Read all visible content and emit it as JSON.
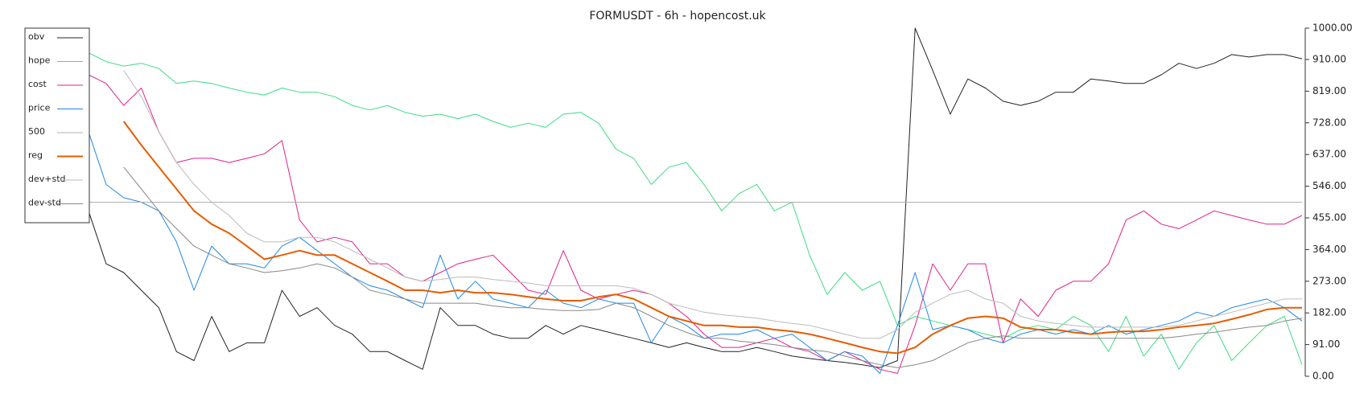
{
  "chart_data": {
    "type": "line",
    "title": "FORMUSDT - 6h - hopencost.uk",
    "ylim": [
      0,
      1000
    ],
    "yticks": [
      {
        "value": 0,
        "label": "0.00"
      },
      {
        "value": 91,
        "label": "91.00"
      },
      {
        "value": 182,
        "label": "182.00"
      },
      {
        "value": 273,
        "label": "273.00"
      },
      {
        "value": 364,
        "label": "364.00"
      },
      {
        "value": 455,
        "label": "455.00"
      },
      {
        "value": 546,
        "label": "546.00"
      },
      {
        "value": 637,
        "label": "637.00"
      },
      {
        "value": 728,
        "label": "728.00"
      },
      {
        "value": 819,
        "label": "819.00"
      },
      {
        "value": 910,
        "label": "910.00"
      },
      {
        "value": 1000,
        "label": "1000.00"
      }
    ],
    "legend": "upper left",
    "series": [
      {
        "name": "obv",
        "color": "#222222",
        "width": 1,
        "values": [
          475,
          323,
          298,
          247,
          197,
          71,
          45,
          172,
          71,
          96,
          96,
          247,
          172,
          197,
          146,
          121,
          71,
          71,
          45,
          20,
          197,
          146,
          146,
          121,
          109,
          109,
          146,
          121,
          146,
          134,
          121,
          109,
          96,
          83,
          96,
          83,
          71,
          71,
          83,
          71,
          58,
          51,
          45,
          40,
          33,
          25,
          45,
          1000,
          879,
          753,
          854,
          828,
          790,
          778,
          790,
          816,
          816,
          854,
          848,
          841,
          841,
          866,
          899,
          884,
          899,
          924,
          917,
          924,
          924,
          912
        ]
      },
      {
        "name": "hope",
        "color": "#3ddc84",
        "width": 1,
        "values": [
          929,
          904,
          891,
          899,
          884,
          841,
          848,
          841,
          828,
          816,
          808,
          828,
          816,
          816,
          803,
          778,
          765,
          778,
          758,
          747,
          753,
          740,
          753,
          732,
          715,
          727,
          715,
          753,
          758,
          727,
          652,
          626,
          551,
          601,
          614,
          551,
          475,
          525,
          551,
          475,
          500,
          348,
          235,
          298,
          247,
          273,
          146,
          172,
          159,
          146,
          134,
          121,
          109,
          134,
          146,
          134,
          172,
          146,
          71,
          172,
          58,
          121,
          20,
          96,
          146,
          45,
          96,
          146,
          172,
          33
        ]
      },
      {
        "name": "cost",
        "color": "#e0218a",
        "width": 1,
        "values": [
          866,
          841,
          778,
          828,
          702,
          614,
          626,
          626,
          614,
          626,
          639,
          677,
          449,
          386,
          399,
          386,
          323,
          323,
          285,
          273,
          298,
          323,
          336,
          348,
          298,
          247,
          235,
          361,
          247,
          222,
          235,
          247,
          235,
          210,
          172,
          121,
          83,
          83,
          96,
          109,
          83,
          71,
          45,
          71,
          45,
          20,
          8,
          146,
          323,
          247,
          323,
          323,
          96,
          222,
          172,
          247,
          273,
          273,
          323,
          449,
          475,
          437,
          424,
          449,
          475,
          462,
          449,
          437,
          437,
          462
        ]
      },
      {
        "name": "price",
        "color": "#1e88e5",
        "width": 1,
        "values": [
          702,
          551,
          513,
          500,
          475,
          386,
          247,
          374,
          323,
          323,
          311,
          374,
          399,
          361,
          323,
          285,
          260,
          247,
          222,
          197,
          348,
          222,
          273,
          222,
          210,
          197,
          247,
          210,
          197,
          222,
          210,
          210,
          96,
          172,
          146,
          109,
          121,
          121,
          134,
          109,
          121,
          83,
          45,
          71,
          58,
          8,
          146,
          298,
          134,
          146,
          134,
          109,
          96,
          121,
          134,
          121,
          134,
          121,
          146,
          121,
          134,
          146,
          159,
          184,
          172,
          197,
          210,
          222,
          197,
          159
        ]
      },
      {
        "name": "500",
        "color": "#b0b0b0",
        "width": 1,
        "values": [
          500,
          500,
          500,
          500,
          500,
          500,
          500,
          500,
          500,
          500,
          500,
          500,
          500,
          500,
          500,
          500,
          500,
          500,
          500,
          500,
          500,
          500,
          500,
          500,
          500,
          500,
          500,
          500,
          500,
          500,
          500,
          500,
          500,
          500,
          500,
          500,
          500,
          500,
          500,
          500,
          500,
          500,
          500,
          500,
          500,
          500,
          500,
          500,
          500,
          500,
          500,
          500,
          500,
          500,
          500,
          500,
          500,
          500,
          500,
          500,
          500,
          500,
          500,
          500,
          500,
          500,
          500,
          500,
          500,
          500
        ]
      },
      {
        "name": "reg",
        "color": "#e65c00",
        "width": 2,
        "values": [
          null,
          null,
          732,
          664,
          601,
          538,
          475,
          437,
          411,
          374,
          336,
          348,
          361,
          348,
          348,
          323,
          298,
          273,
          247,
          247,
          240,
          247,
          240,
          240,
          235,
          228,
          222,
          217,
          217,
          228,
          235,
          222,
          197,
          172,
          159,
          146,
          146,
          141,
          141,
          134,
          129,
          121,
          109,
          96,
          83,
          71,
          66,
          83,
          121,
          146,
          167,
          172,
          167,
          141,
          134,
          134,
          126,
          121,
          126,
          129,
          129,
          134,
          141,
          146,
          152,
          164,
          177,
          192,
          197,
          197
        ]
      },
      {
        "name": "dev+std",
        "color": "#bbbbbb",
        "width": 1,
        "values": [
          null,
          null,
          879,
          803,
          702,
          614,
          551,
          500,
          462,
          411,
          386,
          386,
          399,
          399,
          386,
          361,
          336,
          311,
          285,
          273,
          278,
          285,
          285,
          278,
          273,
          268,
          260,
          260,
          260,
          260,
          260,
          253,
          235,
          210,
          197,
          184,
          177,
          172,
          167,
          159,
          152,
          146,
          134,
          121,
          109,
          109,
          134,
          184,
          210,
          235,
          247,
          222,
          210,
          172,
          159,
          152,
          146,
          141,
          141,
          141,
          141,
          141,
          146,
          159,
          172,
          184,
          197,
          210,
          222,
          222
        ]
      },
      {
        "name": "dev-std",
        "color": "#888888",
        "width": 1,
        "values": [
          null,
          null,
          601,
          538,
          475,
          424,
          374,
          348,
          323,
          311,
          298,
          303,
          311,
          323,
          311,
          285,
          247,
          235,
          222,
          210,
          210,
          210,
          210,
          202,
          197,
          197,
          192,
          189,
          189,
          192,
          210,
          197,
          172,
          146,
          126,
          109,
          109,
          101,
          96,
          91,
          83,
          76,
          71,
          58,
          45,
          33,
          25,
          33,
          45,
          71,
          96,
          109,
          116,
          109,
          109,
          109,
          109,
          109,
          109,
          109,
          109,
          109,
          114,
          121,
          126,
          134,
          141,
          146,
          159,
          167
        ]
      }
    ]
  }
}
